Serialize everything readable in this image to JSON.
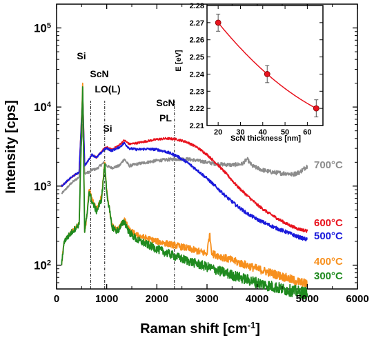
{
  "chart_data": [
    {
      "type": "line",
      "xlabel": "Raman shift [cm",
      "xlabel_sup": "-1",
      "xlabel_end": "]",
      "ylabel": "Intensity [cps]",
      "xlim": [
        0,
        6000
      ],
      "ylim": [
        50,
        200000
      ],
      "yscale": "log",
      "xticks": [
        "0",
        "1000",
        "2000",
        "3000",
        "4000",
        "5000",
        "6000"
      ],
      "yticks": [
        {
          "base": "10",
          "exp": "2",
          "value": 100
        },
        {
          "base": "10",
          "exp": "3",
          "value": 1000
        },
        {
          "base": "10",
          "exp": "4",
          "value": 10000
        },
        {
          "base": "10",
          "exp": "5",
          "value": 100000
        }
      ],
      "annotations": [
        {
          "text": "Si",
          "x": 520
        },
        {
          "text": "ScN",
          "x": 680
        },
        {
          "text": "LO(L)",
          "x": 680
        },
        {
          "text": "Si",
          "x": 960
        },
        {
          "text": "ScN",
          "x": 2350
        },
        {
          "text": "PL",
          "x": 2350
        }
      ],
      "reference_lines_x": [
        680,
        960,
        2350
      ],
      "series": [
        {
          "name": "700°C",
          "color": "#8c8c8c",
          "x": [
            100,
            300,
            450,
            520,
            560,
            650,
            700,
            800,
            950,
            1000,
            1100,
            1250,
            1350,
            1450,
            1600,
            1800,
            2000,
            2200,
            2400,
            2600,
            2800,
            3000,
            3200,
            3500,
            3700,
            3800,
            3900,
            4100,
            4300,
            4500,
            4600,
            4700,
            4850,
            5000
          ],
          "y": [
            800,
            1100,
            1300,
            6000,
            1450,
            1500,
            1600,
            1650,
            2000,
            1800,
            1700,
            1800,
            2200,
            1800,
            1900,
            2000,
            2100,
            2150,
            2200,
            2200,
            2100,
            2000,
            1900,
            1850,
            1900,
            2200,
            1800,
            1600,
            1500,
            1450,
            1450,
            1400,
            1500,
            1800
          ]
        },
        {
          "name": "600°C",
          "color": "#e8131e",
          "x": [
            100,
            300,
            450,
            520,
            560,
            650,
            700,
            800,
            950,
            1000,
            1100,
            1250,
            1350,
            1450,
            1600,
            1800,
            2000,
            2200,
            2400,
            2600,
            2800,
            3000,
            3200,
            3400,
            3600,
            3800,
            4000,
            4200,
            4400,
            4600,
            4800,
            5000
          ],
          "y": [
            1000,
            1300,
            1500,
            15000,
            1800,
            2200,
            2500,
            2300,
            3000,
            3100,
            2900,
            3300,
            3800,
            3400,
            3500,
            3700,
            3900,
            4000,
            3900,
            3600,
            3100,
            2500,
            1900,
            1400,
            1000,
            760,
            580,
            470,
            390,
            330,
            290,
            270
          ]
        },
        {
          "name": "500°C",
          "color": "#1a1adb",
          "x": [
            100,
            300,
            450,
            520,
            560,
            650,
            700,
            800,
            950,
            1000,
            1100,
            1250,
            1350,
            1450,
            1600,
            1800,
            2000,
            2200,
            2400,
            2600,
            2800,
            3000,
            3200,
            3400,
            3600,
            3800,
            4000,
            4200,
            4400,
            4600,
            4800,
            5000
          ],
          "y": [
            1000,
            1300,
            1500,
            14000,
            1800,
            2200,
            2500,
            2300,
            2900,
            3000,
            2800,
            3100,
            3500,
            3000,
            2900,
            2950,
            2900,
            2700,
            2400,
            2000,
            1600,
            1250,
            950,
            720,
            560,
            450,
            380,
            330,
            290,
            260,
            230,
            210
          ]
        },
        {
          "name": "400°C",
          "color": "#f7901e",
          "x": [
            100,
            150,
            300,
            450,
            520,
            560,
            600,
            650,
            700,
            800,
            900,
            960,
            1000,
            1100,
            1200,
            1250,
            1350,
            1450,
            1600,
            2000,
            2500,
            3000,
            3050,
            3100,
            3500,
            4000,
            4500,
            4800,
            5000
          ],
          "y": [
            100,
            200,
            260,
            330,
            20000,
            260,
            400,
            900,
            700,
            500,
            750,
            2000,
            900,
            320,
            280,
            300,
            380,
            280,
            240,
            200,
            170,
            140,
            250,
            140,
            115,
            90,
            72,
            62,
            58
          ]
        },
        {
          "name": "300°C",
          "color": "#1f8a1f",
          "x": [
            100,
            150,
            300,
            450,
            520,
            560,
            600,
            650,
            700,
            800,
            900,
            960,
            1000,
            1100,
            1200,
            1250,
            1350,
            1450,
            1600,
            2000,
            2500,
            3000,
            3500,
            4000,
            4500,
            4800,
            5000
          ],
          "y": [
            100,
            200,
            260,
            330,
            18000,
            260,
            400,
            850,
            650,
            480,
            700,
            1900,
            850,
            310,
            270,
            290,
            360,
            260,
            210,
            160,
            120,
            95,
            75,
            60,
            50,
            46,
            44
          ]
        }
      ]
    },
    {
      "type": "scatter",
      "xlabel": "ScN thickness [nm]",
      "ylabel": "E [eV]",
      "xlim": [
        15,
        67
      ],
      "ylim": [
        2.21,
        2.28
      ],
      "xticks": [
        "20",
        "30",
        "40",
        "50",
        "60"
      ],
      "yticks": [
        "2.21",
        "2.22",
        "2.23",
        "2.24",
        "2.25",
        "2.26",
        "2.27",
        "2.28"
      ],
      "points": [
        {
          "x": 20,
          "y": 2.27,
          "err": 0.005
        },
        {
          "x": 42,
          "y": 2.24,
          "err": 0.005
        },
        {
          "x": 64,
          "y": 2.22,
          "err": 0.005
        }
      ],
      "fit_color": "#e8131e"
    }
  ]
}
